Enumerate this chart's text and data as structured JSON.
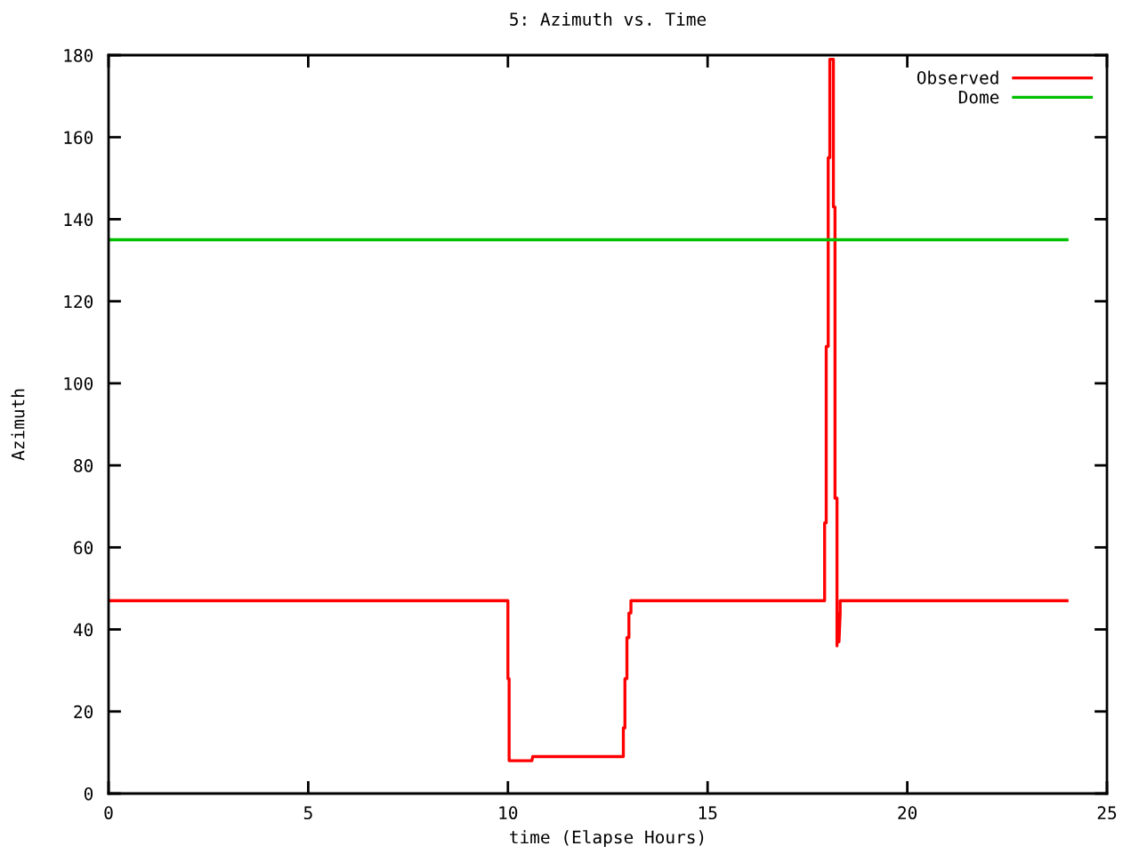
{
  "chart_data": {
    "type": "line",
    "title": "5: Azimuth vs. Time",
    "xlabel": "time (Elapse Hours)",
    "ylabel": "Azimuth",
    "xlim": [
      0,
      25
    ],
    "ylim": [
      0,
      180
    ],
    "xticks": [
      0,
      5,
      10,
      15,
      20,
      25
    ],
    "yticks": [
      0,
      20,
      40,
      60,
      80,
      100,
      120,
      140,
      160,
      180
    ],
    "grid": false,
    "legend": "top right",
    "marker": "none",
    "line_style": "solid",
    "series": [
      {
        "name": "Observed",
        "color": "#ff0000",
        "x": [
          0,
          10.0,
          10.0,
          10.03,
          10.03,
          10.6,
          10.62,
          12.89,
          12.89,
          12.93,
          12.93,
          12.98,
          12.98,
          13.03,
          13.03,
          13.08,
          13.08,
          17.93,
          17.93,
          17.97,
          17.97,
          18.02,
          18.02,
          18.06,
          18.06,
          18.15,
          18.15,
          18.19,
          18.19,
          18.24,
          18.24,
          18.27,
          18.29,
          18.32,
          18.32,
          24
        ],
        "values": [
          47,
          47,
          28,
          28,
          8,
          8,
          9,
          9,
          16,
          16,
          28,
          28,
          38,
          38,
          44,
          44,
          47,
          47,
          66,
          66,
          109,
          109,
          155,
          155,
          179,
          179,
          143,
          143,
          72,
          72,
          36,
          44,
          37,
          44,
          47,
          47
        ]
      },
      {
        "name": "Dome",
        "color": "#00c000",
        "x": [
          0,
          24
        ],
        "values": [
          135,
          135
        ]
      }
    ]
  }
}
